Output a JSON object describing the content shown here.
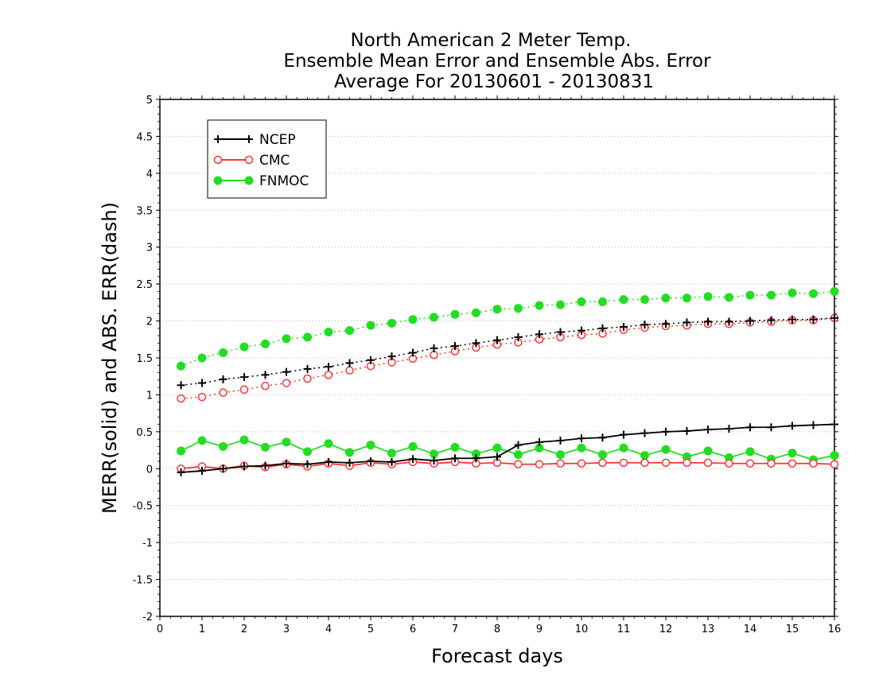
{
  "chart_data": {
    "type": "line",
    "title": [
      "North American 2 Meter Temp.",
      "Ensemble Mean Error and Ensemble Abs. Error",
      "Average For 20130601 - 20130831"
    ],
    "xlabel": "Forecast days",
    "ylabel": "MERR(solid) and ABS. ERR(dash)",
    "xlim": [
      0,
      16
    ],
    "ylim": [
      -2,
      5
    ],
    "xticks": [
      0,
      1,
      2,
      3,
      4,
      5,
      6,
      7,
      8,
      9,
      10,
      11,
      12,
      13,
      14,
      15,
      16
    ],
    "xtick_labels": [
      "0",
      "1",
      "2",
      "3",
      "4",
      "5",
      "6",
      "7",
      "8",
      "9",
      "10",
      "11",
      "12",
      "13",
      "14",
      "15",
      "16"
    ],
    "yticks": [
      -2,
      -1.5,
      -1,
      -0.5,
      0,
      0.5,
      1,
      1.5,
      2,
      2.5,
      3,
      3.5,
      4,
      4.5,
      5
    ],
    "ytick_labels": [
      "-2",
      "-1.5",
      "-1",
      "-0.5",
      "0",
      "0.5",
      "1",
      "1.5",
      "2",
      "2.5",
      "3",
      "3.5",
      "4",
      "4.5",
      "5"
    ],
    "grid": "horizontal dotted",
    "legend_position": "top-left",
    "x": [
      0.5,
      1.0,
      1.5,
      2.0,
      2.5,
      3.0,
      3.5,
      4.0,
      4.5,
      5.0,
      5.5,
      6.0,
      6.5,
      7.0,
      7.5,
      8.0,
      8.5,
      9.0,
      9.5,
      10.0,
      10.5,
      11.0,
      11.5,
      12.0,
      12.5,
      13.0,
      13.5,
      14.0,
      14.5,
      15.0,
      15.5,
      16.0
    ],
    "series": [
      {
        "name": "NCEP",
        "color": "#000000",
        "marker": "plus",
        "merr": [
          -0.05,
          -0.03,
          0.0,
          0.03,
          0.04,
          0.07,
          0.06,
          0.09,
          0.08,
          0.1,
          0.09,
          0.13,
          0.11,
          0.14,
          0.14,
          0.16,
          0.32,
          0.36,
          0.38,
          0.41,
          0.42,
          0.46,
          0.48,
          0.5,
          0.51,
          0.53,
          0.54,
          0.56,
          0.56,
          0.58,
          0.59,
          0.6
        ],
        "abs_err": [
          1.13,
          1.16,
          1.21,
          1.24,
          1.27,
          1.31,
          1.35,
          1.38,
          1.43,
          1.47,
          1.52,
          1.57,
          1.63,
          1.66,
          1.7,
          1.74,
          1.78,
          1.82,
          1.85,
          1.87,
          1.9,
          1.92,
          1.95,
          1.96,
          1.98,
          1.99,
          1.99,
          2.0,
          2.01,
          2.02,
          2.02,
          2.04
        ]
      },
      {
        "name": "CMC",
        "color": "#ff3333",
        "marker": "open-circle",
        "merr": [
          0.0,
          0.03,
          0.0,
          0.04,
          0.02,
          0.06,
          0.03,
          0.07,
          0.04,
          0.08,
          0.06,
          0.09,
          0.07,
          0.09,
          0.07,
          0.08,
          0.06,
          0.06,
          0.07,
          0.07,
          0.08,
          0.08,
          0.08,
          0.08,
          0.08,
          0.08,
          0.07,
          0.07,
          0.07,
          0.07,
          0.07,
          0.06
        ],
        "abs_err": [
          0.95,
          0.97,
          1.03,
          1.07,
          1.12,
          1.16,
          1.22,
          1.27,
          1.33,
          1.39,
          1.44,
          1.49,
          1.54,
          1.59,
          1.64,
          1.68,
          1.71,
          1.75,
          1.78,
          1.81,
          1.83,
          1.88,
          1.91,
          1.93,
          1.94,
          1.96,
          1.96,
          1.98,
          1.99,
          2.01,
          2.01,
          2.04
        ]
      },
      {
        "name": "FNMOC",
        "color": "#22dd22",
        "marker": "filled-circle",
        "merr": [
          0.24,
          0.38,
          0.3,
          0.39,
          0.29,
          0.36,
          0.23,
          0.34,
          0.22,
          0.32,
          0.21,
          0.3,
          0.2,
          0.29,
          0.2,
          0.28,
          0.19,
          0.28,
          0.19,
          0.28,
          0.19,
          0.28,
          0.18,
          0.26,
          0.16,
          0.24,
          0.15,
          0.23,
          0.13,
          0.21,
          0.12,
          0.18
        ],
        "abs_err": [
          1.39,
          1.5,
          1.57,
          1.65,
          1.69,
          1.76,
          1.78,
          1.85,
          1.87,
          1.94,
          1.97,
          2.02,
          2.05,
          2.09,
          2.11,
          2.16,
          2.17,
          2.21,
          2.22,
          2.26,
          2.26,
          2.29,
          2.29,
          2.31,
          2.31,
          2.33,
          2.32,
          2.35,
          2.35,
          2.38,
          2.37,
          2.4
        ]
      }
    ]
  }
}
